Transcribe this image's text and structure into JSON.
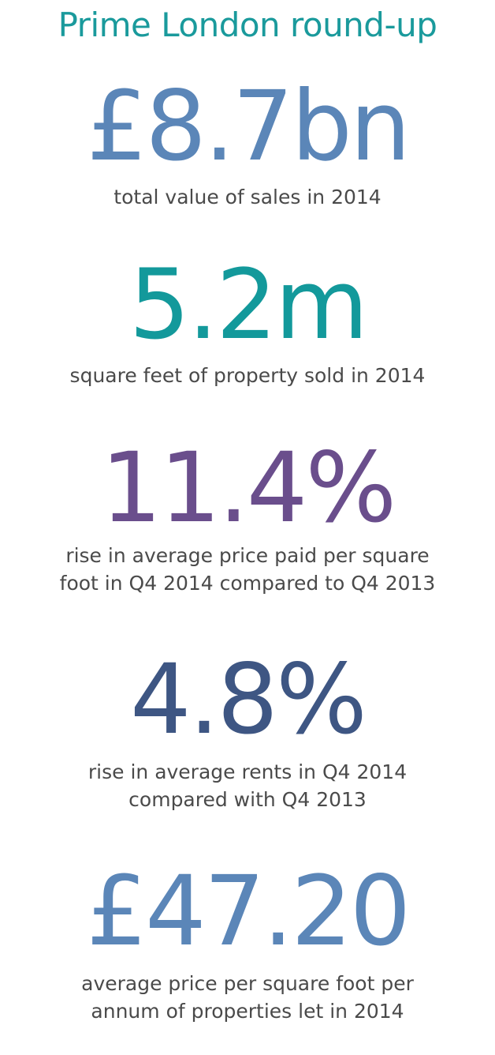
{
  "title": "Prime London round-up",
  "stats": [
    {
      "value": "£8.7bn",
      "caption": "total value of sales in 2014",
      "color": "#5b86b8"
    },
    {
      "value": "5.2m",
      "caption": "square feet of property sold in 2014",
      "color": "#13999b"
    },
    {
      "value": "11.4%",
      "caption": "rise in average price paid per square foot in Q4 2014 compared to Q4 2013",
      "color": "#6a4e8c"
    },
    {
      "value": "4.8%",
      "caption": "rise in average rents in Q4 2014 compared with Q4 2013",
      "color": "#3e5683"
    },
    {
      "value": "£47.20",
      "caption": "average price per square foot per annum of properties let in 2014",
      "color": "#5b86b8"
    }
  ]
}
